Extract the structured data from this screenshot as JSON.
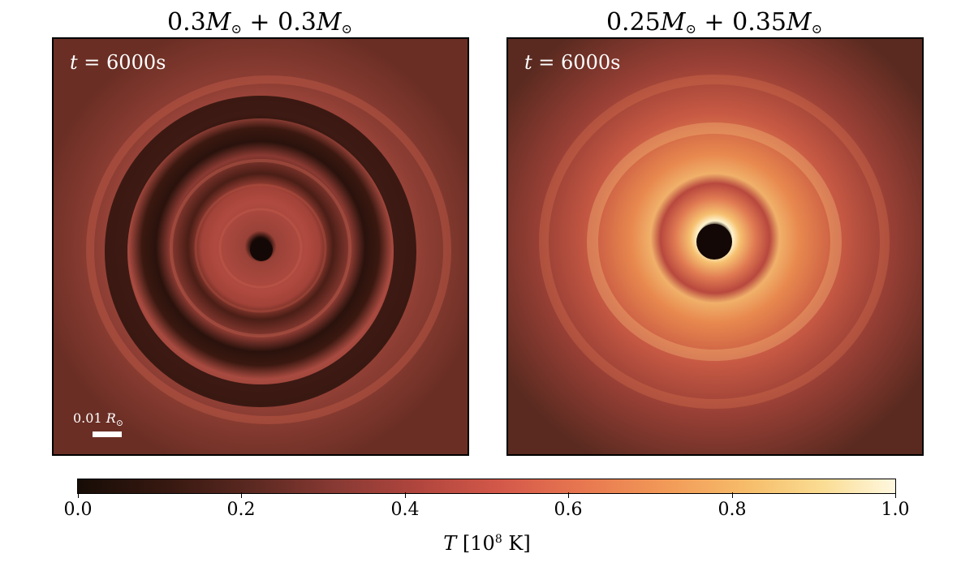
{
  "panels": [
    {
      "title": {
        "mass1": "0.3",
        "mass2": "0.3"
      },
      "time_label": {
        "value": "6000",
        "unit": "s"
      },
      "scale_bar": {
        "value": "0.01",
        "unit": "R"
      }
    },
    {
      "title": {
        "mass1": "0.25",
        "mass2": "0.35"
      },
      "time_label": {
        "value": "6000",
        "unit": "s"
      }
    }
  ],
  "colorbar": {
    "ticks": [
      "0.0",
      "0.2",
      "0.4",
      "0.6",
      "0.8",
      "1.0"
    ],
    "tick_values": [
      0.0,
      0.2,
      0.4,
      0.6,
      0.8,
      1.0
    ],
    "range": [
      0.0,
      1.0
    ],
    "label": {
      "symbol": "T",
      "exponent": "8",
      "unit": "K"
    },
    "colors": [
      "#170c06",
      "#5e2a22",
      "#b2463e",
      "#e87850",
      "#f6bd6a",
      "#fff8e0"
    ]
  }
}
